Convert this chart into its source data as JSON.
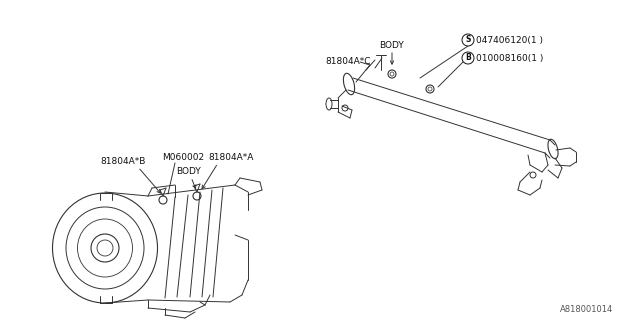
{
  "bg_color": "#ffffff",
  "diagram_id": "A818001014",
  "line_color": "#333333",
  "text_color": "#111111",
  "lw": 0.7,
  "labels": {
    "upper_body": "BODY",
    "upper_81804AC": "81804A*C",
    "upper_S_num": "047406120(1 )",
    "upper_B_num": "010008160(1 )",
    "lower_81804AB": "81804A*B",
    "lower_M060002": "M060002",
    "lower_81804AA": "81804A*A",
    "lower_body": "BODY"
  }
}
